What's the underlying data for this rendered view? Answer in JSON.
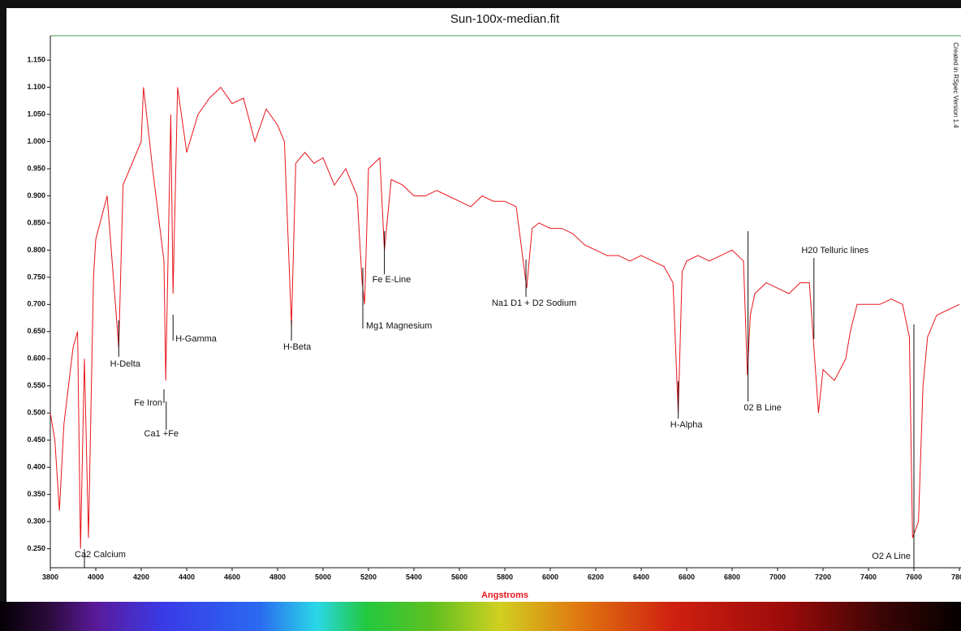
{
  "chart_data": {
    "type": "line",
    "title": "Sun-100x-median.fit",
    "xlabel": "Angstroms",
    "side_note": "Created in RSpec Version 1.4",
    "xlim": [
      3800,
      7800
    ],
    "ylim": [
      0.215,
      1.195
    ],
    "xticks": [
      3800,
      4000,
      4200,
      4400,
      4600,
      4800,
      5000,
      5200,
      5400,
      5600,
      5800,
      6000,
      6200,
      6400,
      6600,
      6800,
      7000,
      7200,
      7400,
      7600,
      7800
    ],
    "yticks": [
      {
        "value": 0.25,
        "label": "0.250"
      },
      {
        "value": 0.3,
        "label": "0.300"
      },
      {
        "value": 0.35,
        "label": "0.350"
      },
      {
        "value": 0.4,
        "label": "0.400"
      },
      {
        "value": 0.45,
        "label": "0.450"
      },
      {
        "value": 0.5,
        "label": "0.500"
      },
      {
        "value": 0.55,
        "label": "0.550"
      },
      {
        "value": 0.6,
        "label": "0.600"
      },
      {
        "value": 0.65,
        "label": "0.650"
      },
      {
        "value": 0.7,
        "label": "0.700"
      },
      {
        "value": 0.75,
        "label": "0.750"
      },
      {
        "value": 0.8,
        "label": "0.800"
      },
      {
        "value": 0.85,
        "label": "0.850"
      },
      {
        "value": 0.9,
        "label": "0.900"
      },
      {
        "value": 0.95,
        "label": "0.950"
      },
      {
        "value": 1.0,
        "label": "1.000"
      },
      {
        "value": 1.05,
        "label": "1.050"
      },
      {
        "value": 1.1,
        "label": "1.100"
      },
      {
        "value": 1.15,
        "label": "1.150"
      }
    ],
    "color": "#e8141b",
    "x": [
      3800,
      3820,
      3840,
      3860,
      3880,
      3900,
      3920,
      3933,
      3950,
      3968,
      3990,
      4000,
      4050,
      4101,
      4120,
      4150,
      4200,
      4210,
      4250,
      4300,
      4308,
      4330,
      4340,
      4360,
      4400,
      4450,
      4500,
      4550,
      4600,
      4650,
      4700,
      4750,
      4800,
      4830,
      4861,
      4880,
      4920,
      4960,
      5000,
      5050,
      5100,
      5150,
      5172,
      5183,
      5200,
      5250,
      5270,
      5300,
      5350,
      5400,
      5450,
      5500,
      5550,
      5600,
      5650,
      5700,
      5750,
      5800,
      5850,
      5890,
      5896,
      5920,
      5950,
      6000,
      6050,
      6100,
      6150,
      6200,
      6250,
      6300,
      6350,
      6400,
      6450,
      6500,
      6540,
      6563,
      6580,
      6600,
      6650,
      6700,
      6750,
      6800,
      6850,
      6867,
      6880,
      6900,
      6950,
      7000,
      7050,
      7100,
      7140,
      7160,
      7180,
      7200,
      7250,
      7300,
      7320,
      7350,
      7400,
      7450,
      7500,
      7550,
      7580,
      7594,
      7620,
      7640,
      7660,
      7700,
      7750,
      7800
    ],
    "values": [
      0.5,
      0.45,
      0.32,
      0.48,
      0.55,
      0.62,
      0.65,
      0.25,
      0.6,
      0.27,
      0.75,
      0.82,
      0.9,
      0.62,
      0.92,
      0.95,
      1.0,
      1.1,
      0.95,
      0.78,
      0.56,
      1.05,
      0.72,
      1.1,
      0.98,
      1.05,
      1.08,
      1.1,
      1.07,
      1.08,
      1.0,
      1.06,
      1.03,
      1.0,
      0.66,
      0.96,
      0.98,
      0.96,
      0.97,
      0.92,
      0.95,
      0.9,
      0.74,
      0.7,
      0.95,
      0.97,
      0.8,
      0.93,
      0.92,
      0.9,
      0.9,
      0.91,
      0.9,
      0.89,
      0.88,
      0.9,
      0.89,
      0.89,
      0.88,
      0.75,
      0.73,
      0.84,
      0.85,
      0.84,
      0.84,
      0.83,
      0.81,
      0.8,
      0.79,
      0.79,
      0.78,
      0.79,
      0.78,
      0.77,
      0.74,
      0.5,
      0.76,
      0.78,
      0.79,
      0.78,
      0.79,
      0.8,
      0.78,
      0.57,
      0.68,
      0.72,
      0.74,
      0.73,
      0.72,
      0.74,
      0.74,
      0.62,
      0.5,
      0.58,
      0.56,
      0.6,
      0.65,
      0.7,
      0.7,
      0.7,
      0.71,
      0.7,
      0.64,
      0.27,
      0.3,
      0.55,
      0.64,
      0.68,
      0.69,
      0.7
    ],
    "annotations": [
      {
        "text": "Ca2 Calcium",
        "x": 3950
      },
      {
        "text": "H-Delta",
        "x": 4101
      },
      {
        "text": "Fe Iron",
        "x": 4300
      },
      {
        "text": "Ca1 +Fe",
        "x": 4310
      },
      {
        "text": "H-Gamma",
        "x": 4340
      },
      {
        "text": "H-Beta",
        "x": 4861
      },
      {
        "text": "Fe E-Line",
        "x": 5270
      },
      {
        "text": "Mg1 Magnesium",
        "x": 5175
      },
      {
        "text": "Na1 D1 + D2 Sodium",
        "x": 5893
      },
      {
        "text": "H-Alpha",
        "x": 6563
      },
      {
        "text": "02 B Line",
        "x": 6870
      },
      {
        "text": "H20 Telluric lines",
        "x": 7160
      },
      {
        "text": "O2 A Line",
        "x": 7600
      }
    ]
  }
}
